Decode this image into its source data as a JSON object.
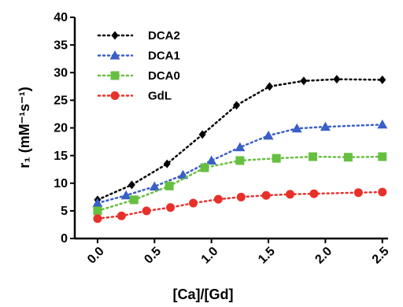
{
  "chart_data": {
    "type": "line",
    "x_label": "[Ca]/[Gd]",
    "y_label": "r₁ (mM⁻¹s⁻¹)",
    "xlim": [
      -0.2,
      2.55
    ],
    "ylim": [
      0,
      40
    ],
    "xticks": [
      {
        "value": 0,
        "label": "0.0"
      },
      0.5,
      {
        "value": 1,
        "label": "1.0"
      },
      1.5,
      {
        "value": 2,
        "label": "2.0"
      },
      2.5
    ],
    "yticks": [
      0,
      5,
      10,
      15,
      20,
      25,
      30,
      35,
      40
    ],
    "legend": "upper-left",
    "series": [
      {
        "name": "DCA2",
        "color": "#000000",
        "marker": "diamond",
        "x": [
          0,
          0.3,
          0.61,
          0.92,
          1.22,
          1.51,
          1.81,
          2.1,
          2.5
        ],
        "values": [
          7.0,
          9.7,
          13.5,
          18.8,
          24.1,
          27.5,
          28.5,
          28.8,
          28.7
        ]
      },
      {
        "name": "DCA1",
        "color": "#3a5fc8",
        "marker": "triangle",
        "x": [
          0,
          0.25,
          0.5,
          0.75,
          1.0,
          1.25,
          1.5,
          1.75,
          2.0,
          2.5
        ],
        "values": [
          6.4,
          7.8,
          9.4,
          11.5,
          14.1,
          16.5,
          18.6,
          19.9,
          20.2,
          20.6
        ]
      },
      {
        "name": "DCA0",
        "color": "#66c040",
        "marker": "square",
        "x": [
          0,
          0.32,
          0.63,
          0.94,
          1.25,
          1.57,
          1.89,
          2.2,
          2.5
        ],
        "values": [
          5.0,
          7.0,
          9.5,
          12.8,
          14.1,
          14.5,
          14.8,
          14.7,
          14.8
        ]
      },
      {
        "name": "GdL",
        "color": "#e8302a",
        "marker": "circle",
        "x": [
          0,
          0.21,
          0.43,
          0.64,
          0.84,
          1.06,
          1.26,
          1.48,
          1.69,
          1.9,
          2.29,
          2.5
        ],
        "values": [
          3.6,
          4.1,
          5.0,
          5.6,
          6.4,
          7.1,
          7.5,
          7.8,
          8.0,
          8.1,
          8.3,
          8.4
        ]
      }
    ]
  }
}
